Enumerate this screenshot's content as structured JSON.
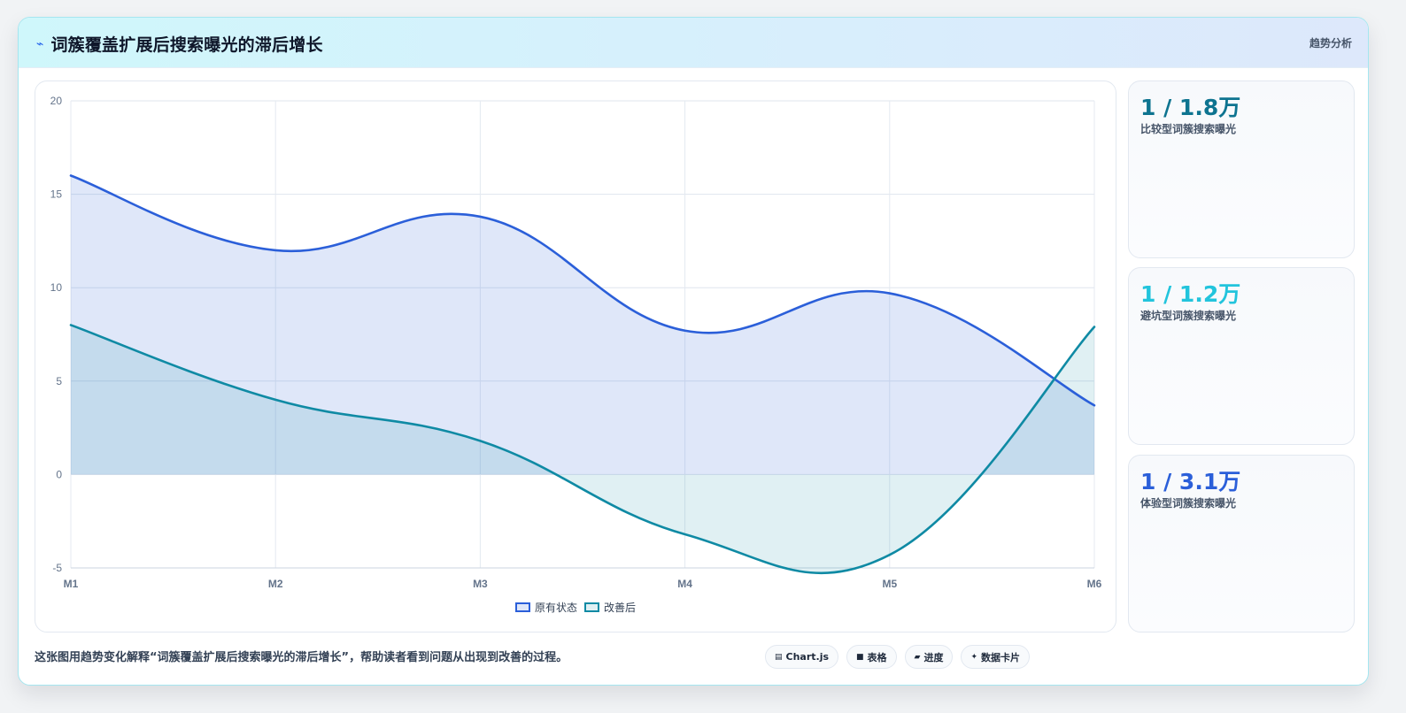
{
  "header": {
    "icon": "bolt-icon",
    "title": "词簇覆盖扩展后搜索曝光的滞后增长",
    "tag": "趋势分析"
  },
  "chart_data": {
    "type": "area",
    "title": "",
    "xlabel": "",
    "ylabel": "",
    "categories": [
      "M1",
      "M2",
      "M3",
      "M4",
      "M5",
      "M6"
    ],
    "ylim": [
      -5,
      20
    ],
    "yticks": [
      20,
      15,
      10,
      5,
      0,
      -5
    ],
    "grid": true,
    "smooth": true,
    "legend_position": "bottom",
    "series": [
      {
        "name": "原有状态",
        "values": [
          16,
          12,
          13.8,
          7.7,
          9.7,
          3.7
        ],
        "color": "#2b5fd9",
        "fill": "rgba(43,95,217,0.15)"
      },
      {
        "name": "改善后",
        "values": [
          8,
          4,
          1.8,
          -3.2,
          -4.3,
          7.9
        ],
        "color": "#0f8aa4",
        "fill": "rgba(15,138,164,0.13)"
      }
    ]
  },
  "stats": [
    {
      "value": "1 / 1.8万",
      "label": "比较型词簇搜索曝光",
      "color": "#0e7490"
    },
    {
      "value": "1 / 1.2万",
      "label": "避坑型词簇搜索曝光",
      "color": "#22c4dc"
    },
    {
      "value": "1 / 3.1万",
      "label": "体验型词簇搜索曝光",
      "color": "#2b5fd9"
    }
  ],
  "caption": "这张图用趋势变化解释“词簇覆盖扩展后搜索曝光的滞后增长”，帮助读者看到问题从出现到改善的过程。",
  "chips": [
    {
      "icon": "chart-icon",
      "glyph": "▤",
      "label": "Chart.js"
    },
    {
      "icon": "table-icon",
      "glyph": "■",
      "label": "表格"
    },
    {
      "icon": "progress-icon",
      "glyph": "▰",
      "label": "进度"
    },
    {
      "icon": "sparkle-icon",
      "glyph": "✦",
      "label": "数据卡片"
    }
  ]
}
